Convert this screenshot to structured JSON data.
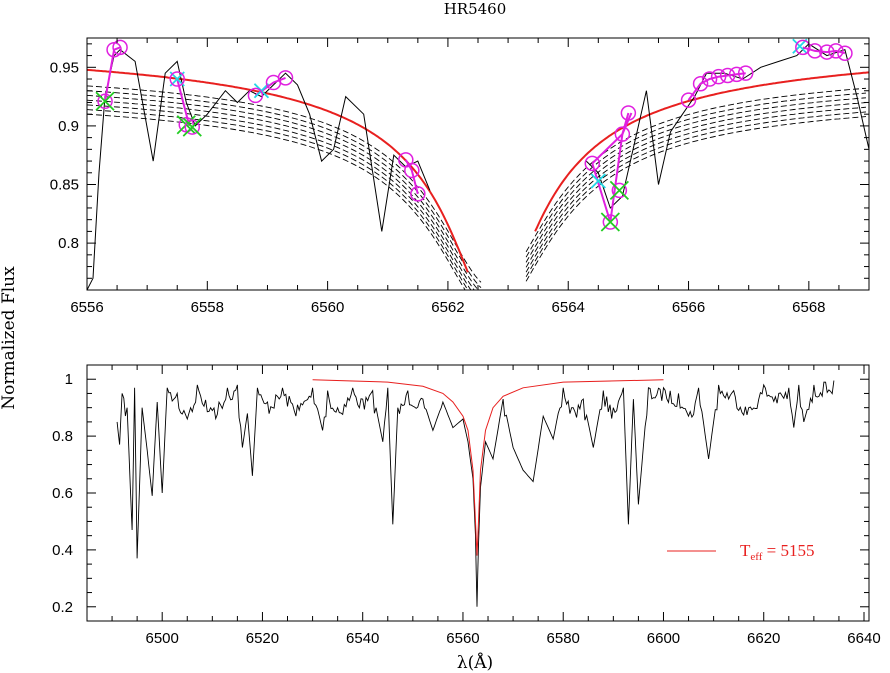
{
  "chart_data": [
    {
      "type": "line",
      "title": "HR5460",
      "xlabel": "",
      "ylabel": "",
      "xlim": [
        6556,
        6569
      ],
      "ylim": [
        0.76,
        0.975
      ],
      "x_ticks": [
        6556,
        6558,
        6560,
        6562,
        6564,
        6566,
        6568
      ],
      "x_tick_labels": [
        "6556",
        "6558",
        "6560",
        "6562",
        "6564",
        "6566",
        "6568"
      ],
      "y_ticks": [
        0.8,
        0.85,
        0.9,
        0.95
      ],
      "y_tick_labels": [
        "0.8",
        "0.85",
        "0.9",
        "0.95"
      ],
      "colors": {
        "spectrum": "#000000",
        "fit": "#e8201f",
        "selected": "#e020e0",
        "rejected_a": "#22cc22",
        "rejected_b": "#22d8e6",
        "grid_models": "#000000"
      },
      "series": [
        {
          "style": "solid",
          "color": "#000000",
          "x": [
            6556.0,
            6556.1,
            6556.2,
            6556.3,
            6556.45,
            6556.55,
            6556.8,
            6557.1,
            6557.3,
            6557.5,
            6557.65,
            6557.8,
            6558.0,
            6558.3,
            6558.5,
            6558.7,
            6558.9,
            6559.1,
            6559.3,
            6559.5,
            6559.7,
            6559.9,
            6560.1,
            6560.3,
            6560.6,
            6560.9,
            6561.1,
            6561.3,
            6561.5,
            6561.7
          ],
          "y": [
            0.76,
            0.77,
            0.86,
            0.925,
            0.96,
            0.965,
            0.955,
            0.87,
            0.945,
            0.955,
            0.92,
            0.9,
            0.91,
            0.93,
            0.92,
            0.93,
            0.925,
            0.935,
            0.945,
            0.935,
            0.91,
            0.87,
            0.88,
            0.925,
            0.91,
            0.81,
            0.875,
            0.865,
            0.87,
            0.845
          ]
        },
        {
          "style": "solid",
          "color": "#000000",
          "x": [
            6564.3,
            6564.5,
            6564.7,
            6564.9,
            6565.1,
            6565.3,
            6565.5,
            6565.7,
            6565.9,
            6566.1,
            6566.3,
            6566.6,
            6566.9,
            6567.2,
            6567.5,
            6567.8,
            6568.0,
            6568.3,
            6568.6,
            6568.8,
            6569.0
          ],
          "y": [
            0.87,
            0.86,
            0.83,
            0.84,
            0.885,
            0.93,
            0.85,
            0.895,
            0.91,
            0.925,
            0.945,
            0.945,
            0.94,
            0.95,
            0.955,
            0.96,
            0.97,
            0.96,
            0.965,
            0.925,
            0.88
          ]
        }
      ],
      "dashed_models": 7,
      "fit_curve": {
        "color": "#e8201f",
        "center": 6562.75,
        "x_left_end": 6562.3,
        "x_right_start": 6563.5
      },
      "selected_points": [
        {
          "x": 6556.45,
          "y": 0.965
        },
        {
          "x": 6556.55,
          "y": 0.967
        },
        {
          "x": 6557.5,
          "y": 0.94
        },
        {
          "x": 6558.8,
          "y": 0.926
        },
        {
          "x": 6559.1,
          "y": 0.937
        },
        {
          "x": 6559.3,
          "y": 0.941
        },
        {
          "x": 6561.3,
          "y": 0.871
        },
        {
          "x": 6561.4,
          "y": 0.862
        },
        {
          "x": 6561.5,
          "y": 0.842
        },
        {
          "x": 6564.4,
          "y": 0.868
        },
        {
          "x": 6564.9,
          "y": 0.893
        },
        {
          "x": 6565.0,
          "y": 0.911
        },
        {
          "x": 6566.0,
          "y": 0.922
        },
        {
          "x": 6566.2,
          "y": 0.936
        },
        {
          "x": 6566.35,
          "y": 0.94
        },
        {
          "x": 6566.5,
          "y": 0.942
        },
        {
          "x": 6566.65,
          "y": 0.943
        },
        {
          "x": 6566.8,
          "y": 0.944
        },
        {
          "x": 6566.95,
          "y": 0.945
        },
        {
          "x": 6567.9,
          "y": 0.967
        },
        {
          "x": 6568.1,
          "y": 0.964
        },
        {
          "x": 6568.3,
          "y": 0.963
        },
        {
          "x": 6568.45,
          "y": 0.964
        },
        {
          "x": 6568.6,
          "y": 0.962
        }
      ],
      "rejected_points": [
        {
          "x": 6556.3,
          "y": 0.921
        },
        {
          "x": 6557.65,
          "y": 0.901
        },
        {
          "x": 6557.75,
          "y": 0.899
        },
        {
          "x": 6564.7,
          "y": 0.818
        },
        {
          "x": 6564.85,
          "y": 0.845
        }
      ],
      "cyan_marks": [
        {
          "x": 6557.5,
          "y": 0.94
        },
        {
          "x": 6558.9,
          "y": 0.93
        },
        {
          "x": 6564.5,
          "y": 0.853
        },
        {
          "x": 6567.85,
          "y": 0.968
        }
      ]
    },
    {
      "type": "line",
      "title": "",
      "xlabel": "λ(Å)",
      "ylabel": "Normalized Flux",
      "xlim": [
        6485,
        6641
      ],
      "ylim": [
        0.15,
        1.05
      ],
      "x_ticks": [
        6500,
        6520,
        6540,
        6560,
        6580,
        6600,
        6620,
        6640
      ],
      "x_tick_labels": [
        "6500",
        "6520",
        "6540",
        "6560",
        "6580",
        "6600",
        "6620",
        "6640"
      ],
      "y_ticks": [
        0.2,
        0.4,
        0.6,
        0.8,
        1.0
      ],
      "y_tick_labels": [
        "0.2",
        "0.4",
        "0.6",
        "0.8",
        "1"
      ],
      "legend": {
        "position": "bottom-right",
        "label_main": "T",
        "label_sub": "eff",
        "label_rest": " = 5155",
        "color": "#e8201f"
      },
      "series": [
        {
          "name": "T eff = 5155",
          "color": "#e8201f",
          "x": [
            6530,
            6545,
            6552,
            6556,
            6558,
            6560,
            6561,
            6562,
            6562.5,
            6562.8,
            6563.1,
            6563.5,
            6564.5,
            6566,
            6568,
            6572,
            6580,
            6600
          ],
          "y": [
            0.998,
            0.99,
            0.975,
            0.95,
            0.92,
            0.87,
            0.82,
            0.68,
            0.5,
            0.38,
            0.5,
            0.68,
            0.82,
            0.9,
            0.94,
            0.97,
            0.99,
            0.998
          ]
        },
        {
          "name": "",
          "color": "#000000",
          "x": [
            6491,
            6491.5,
            6492,
            6493,
            6494,
            6494.5,
            6495,
            6496,
            6497,
            6498,
            6499,
            6500,
            6501,
            6503,
            6505,
            6507,
            6510,
            6513,
            6515,
            6516,
            6517,
            6518,
            6519,
            6521,
            6524,
            6527,
            6530,
            6532,
            6533,
            6535,
            6538,
            6540,
            6542,
            6544,
            6545,
            6546,
            6547,
            6549,
            6552,
            6554,
            6556,
            6558,
            6560,
            6561,
            6562,
            6562.5,
            6562.8,
            6563.1,
            6563.5,
            6564.5,
            6566,
            6568,
            6570,
            6572,
            6574,
            6576,
            6578,
            6580,
            6582,
            6584,
            6586,
            6588,
            6590,
            6592,
            6593,
            6594,
            6595,
            6597,
            6600,
            6603,
            6605,
            6607,
            6609,
            6611,
            6614,
            6617,
            6620,
            6623,
            6625,
            6626,
            6627,
            6628,
            6630,
            6632,
            6634
          ],
          "y": [
            0.85,
            0.77,
            0.95,
            0.9,
            0.47,
            0.97,
            0.37,
            0.9,
            0.75,
            0.59,
            0.92,
            0.6,
            0.97,
            0.95,
            0.86,
            0.98,
            0.89,
            0.97,
            0.98,
            0.76,
            0.88,
            0.66,
            0.97,
            0.92,
            0.97,
            0.91,
            0.97,
            0.82,
            0.96,
            0.9,
            0.97,
            0.93,
            0.96,
            0.78,
            0.97,
            0.49,
            0.9,
            0.96,
            0.93,
            0.82,
            0.92,
            0.83,
            0.86,
            0.78,
            0.65,
            0.45,
            0.2,
            0.42,
            0.62,
            0.78,
            0.72,
            0.93,
            0.76,
            0.68,
            0.64,
            0.87,
            0.79,
            0.97,
            0.9,
            0.93,
            0.76,
            0.96,
            0.9,
            0.97,
            0.49,
            0.93,
            0.56,
            0.97,
            0.97,
            0.95,
            0.87,
            0.97,
            0.72,
            0.98,
            0.96,
            0.9,
            0.98,
            0.95,
            0.97,
            0.83,
            0.98,
            0.85,
            0.98,
            0.99,
            0.995
          ]
        }
      ]
    }
  ]
}
